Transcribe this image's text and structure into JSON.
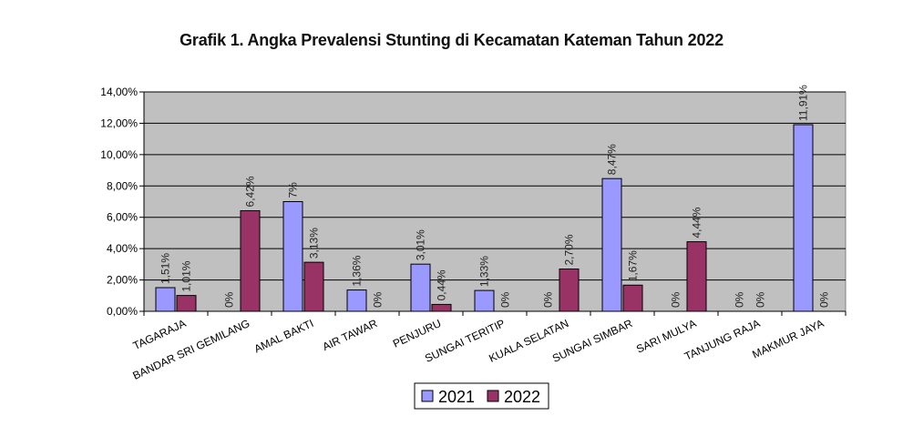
{
  "chart_data": {
    "type": "bar",
    "title": "Grafik 1. Angka Prevalensi Stunting di Kecamatan Kateman Tahun 2022",
    "categories": [
      "TAGARAJA",
      "BANDAR SRI GEMILANG",
      "AMAL BAKTI",
      "AIR TAWAR",
      "PENJURU",
      "SUNGAI TERITIP",
      "KUALA SELATAN",
      "SUNGAI SIMBAR",
      "SARI MULYA",
      "TANJUNG RAJA",
      "MAKMUR JAYA"
    ],
    "category_display": [
      "TAGARAJA",
      "BANDAR SRI GEMILANG",
      "AMAL BAKTI",
      "AIR TAWAR",
      "PENJURU",
      "SUNGAI TERITIP",
      "KUALA SELATAN",
      "SUNGAI SIMBAR",
      "SARI MULYA",
      "TANJUNG RAJA",
      "MAKMUR JAYA"
    ],
    "series": [
      {
        "name": "2021",
        "color": "#9999ff",
        "values": [
          1.51,
          0,
          7,
          1.36,
          3.01,
          1.33,
          0,
          8.47,
          0,
          0,
          11.91
        ],
        "labels": [
          "1,51%",
          "0%",
          "7%",
          "1,36%",
          "3,01%",
          "1,33%",
          "0%",
          "8,47%",
          "0%",
          "0%",
          "11,91%"
        ]
      },
      {
        "name": "2022",
        "color": "#993366",
        "values": [
          1.01,
          6.42,
          3.13,
          0,
          0.44,
          0,
          2.7,
          1.67,
          4.44,
          0,
          0
        ],
        "labels": [
          "1,01%",
          "6,42%",
          "3,13%",
          "0%",
          "0,44%",
          "0%",
          "2,70%",
          "1,67%",
          "4,44%",
          "0%",
          "0%"
        ]
      }
    ],
    "ylim": [
      0,
      14
    ],
    "yticks": [
      0,
      2,
      4,
      6,
      8,
      10,
      12,
      14
    ],
    "ytick_labels": [
      "0,00%",
      "2,00%",
      "4,00%",
      "6,00%",
      "8,00%",
      "10,00%",
      "12,00%",
      "14,00%"
    ],
    "xlabel": "",
    "ylabel": "",
    "grid": true,
    "plot_background": "#c0c0c0",
    "legend_position": "bottom"
  }
}
